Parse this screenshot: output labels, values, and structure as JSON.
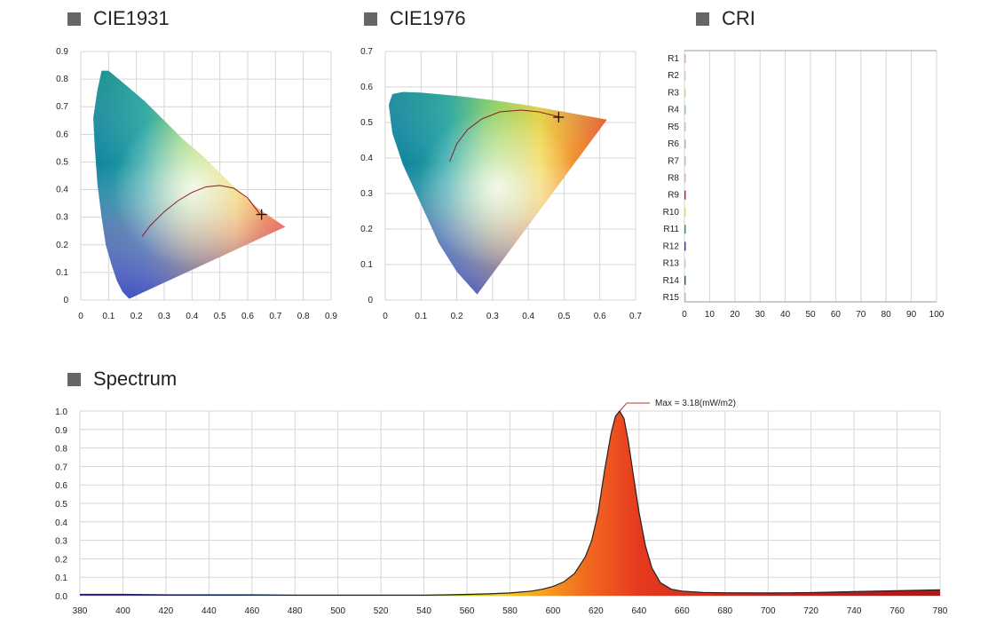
{
  "sections": {
    "cie1931_title": "CIE1931",
    "cie1976_title": "CIE1976",
    "cri_title": "CRI",
    "spectrum_title": "Spectrum"
  },
  "colors": {
    "section_marker": "#666666",
    "grid": "#d6d6d6",
    "locus": "#8b1c1c",
    "spectrum_outline": "#222222"
  },
  "chart_data": [
    {
      "id": "cie1931",
      "type": "scatter",
      "title": "CIE1931",
      "xlim": [
        0,
        0.9
      ],
      "ylim": [
        0,
        0.9
      ],
      "x_ticks": [
        "0",
        "0.1",
        "0.2",
        "0.3",
        "0.4",
        "0.5",
        "0.6",
        "0.7",
        "0.8",
        "0.9"
      ],
      "y_ticks": [
        "0",
        "0.1",
        "0.2",
        "0.3",
        "0.4",
        "0.5",
        "0.6",
        "0.7",
        "0.8",
        "0.9"
      ],
      "grid": true,
      "spectral_locus": [
        [
          0.174,
          0.005
        ],
        [
          0.15,
          0.03
        ],
        [
          0.13,
          0.07
        ],
        [
          0.11,
          0.13
        ],
        [
          0.09,
          0.2
        ],
        [
          0.075,
          0.3
        ],
        [
          0.06,
          0.42
        ],
        [
          0.05,
          0.56
        ],
        [
          0.045,
          0.66
        ],
        [
          0.06,
          0.76
        ],
        [
          0.075,
          0.83
        ],
        [
          0.1,
          0.83
        ],
        [
          0.16,
          0.78
        ],
        [
          0.23,
          0.72
        ],
        [
          0.3,
          0.65
        ],
        [
          0.37,
          0.58
        ],
        [
          0.44,
          0.52
        ],
        [
          0.5,
          0.46
        ],
        [
          0.56,
          0.4
        ],
        [
          0.64,
          0.33
        ],
        [
          0.735,
          0.265
        ]
      ],
      "planckian_locus": [
        [
          0.22,
          0.23
        ],
        [
          0.25,
          0.27
        ],
        [
          0.3,
          0.32
        ],
        [
          0.35,
          0.36
        ],
        [
          0.4,
          0.39
        ],
        [
          0.45,
          0.41
        ],
        [
          0.5,
          0.415
        ],
        [
          0.55,
          0.405
        ],
        [
          0.6,
          0.37
        ],
        [
          0.645,
          0.31
        ]
      ],
      "measured_point": {
        "x": 0.65,
        "y": 0.31
      }
    },
    {
      "id": "cie1976",
      "type": "scatter",
      "title": "CIE1976",
      "xlim": [
        0,
        0.7
      ],
      "ylim": [
        0,
        0.7
      ],
      "x_ticks": [
        "0",
        "0.1",
        "0.2",
        "0.3",
        "0.4",
        "0.5",
        "0.6",
        "0.7"
      ],
      "y_ticks": [
        "0",
        "0.1",
        "0.2",
        "0.3",
        "0.4",
        "0.5",
        "0.6",
        "0.7"
      ],
      "grid": true,
      "spectral_locus": [
        [
          0.257,
          0.016
        ],
        [
          0.2,
          0.08
        ],
        [
          0.15,
          0.16
        ],
        [
          0.1,
          0.27
        ],
        [
          0.05,
          0.38
        ],
        [
          0.02,
          0.47
        ],
        [
          0.01,
          0.55
        ],
        [
          0.02,
          0.58
        ],
        [
          0.05,
          0.586
        ],
        [
          0.1,
          0.584
        ],
        [
          0.2,
          0.575
        ],
        [
          0.3,
          0.563
        ],
        [
          0.4,
          0.548
        ],
        [
          0.5,
          0.53
        ],
        [
          0.62,
          0.508
        ]
      ],
      "planckian_locus": [
        [
          0.18,
          0.39
        ],
        [
          0.2,
          0.44
        ],
        [
          0.23,
          0.48
        ],
        [
          0.27,
          0.51
        ],
        [
          0.32,
          0.53
        ],
        [
          0.38,
          0.535
        ],
        [
          0.43,
          0.53
        ],
        [
          0.49,
          0.515
        ]
      ],
      "measured_point": {
        "x": 0.485,
        "y": 0.515
      }
    },
    {
      "id": "cri",
      "type": "bar",
      "title": "CRI",
      "orientation": "horizontal",
      "categories": [
        "R1",
        "R2",
        "R3",
        "R4",
        "R5",
        "R6",
        "R7",
        "R8",
        "R9",
        "R10",
        "R11",
        "R12",
        "R13",
        "R14",
        "R15"
      ],
      "values": [
        0,
        0,
        0,
        0,
        0,
        0,
        0,
        0,
        0,
        0,
        0,
        0,
        0,
        0,
        0
      ],
      "bar_colors": [
        "#e8a5a5",
        "#d8cfa0",
        "#bde08a",
        "#7fd29e",
        "#8fd4e0",
        "#9ab2e8",
        "#c8a8e8",
        "#e6a6cc",
        "#d02020",
        "#f0e030",
        "#30a040",
        "#2040c0",
        "#f0c0a0",
        "#207040",
        "#e0b090"
      ],
      "xlim": [
        0,
        100
      ],
      "x_ticks": [
        "0",
        "10",
        "20",
        "30",
        "40",
        "50",
        "60",
        "70",
        "80",
        "90",
        "100"
      ],
      "grid": true
    },
    {
      "id": "spectrum",
      "type": "area",
      "title": "Spectrum",
      "xlim": [
        380,
        780
      ],
      "ylim": [
        0,
        1.0
      ],
      "x_ticks": [
        "380",
        "400",
        "420",
        "440",
        "460",
        "480",
        "500",
        "520",
        "540",
        "560",
        "580",
        "600",
        "620",
        "640",
        "660",
        "680",
        "700",
        "720",
        "740",
        "760",
        "780"
      ],
      "y_ticks": [
        "0.0",
        "0.1",
        "0.2",
        "0.3",
        "0.4",
        "0.5",
        "0.6",
        "0.7",
        "0.8",
        "0.9",
        "1.0"
      ],
      "grid": true,
      "annotation": "Max = 3.18(mW/m2)",
      "peak": {
        "x": 631,
        "y": 1.0
      },
      "x": [
        380,
        400,
        420,
        440,
        460,
        480,
        500,
        520,
        540,
        550,
        560,
        570,
        580,
        590,
        595,
        600,
        605,
        610,
        615,
        618,
        621,
        624,
        627,
        629,
        631,
        633,
        635,
        637,
        640,
        643,
        646,
        650,
        655,
        660,
        670,
        680,
        700,
        720,
        740,
        760,
        780
      ],
      "y": [
        0.007,
        0.007,
        0.005,
        0.005,
        0.005,
        0.003,
        0.003,
        0.003,
        0.003,
        0.005,
        0.007,
        0.01,
        0.015,
        0.025,
        0.035,
        0.05,
        0.075,
        0.12,
        0.21,
        0.3,
        0.45,
        0.68,
        0.88,
        0.97,
        1.0,
        0.96,
        0.84,
        0.68,
        0.45,
        0.27,
        0.15,
        0.07,
        0.035,
        0.025,
        0.018,
        0.016,
        0.015,
        0.017,
        0.022,
        0.027,
        0.032
      ]
    }
  ]
}
